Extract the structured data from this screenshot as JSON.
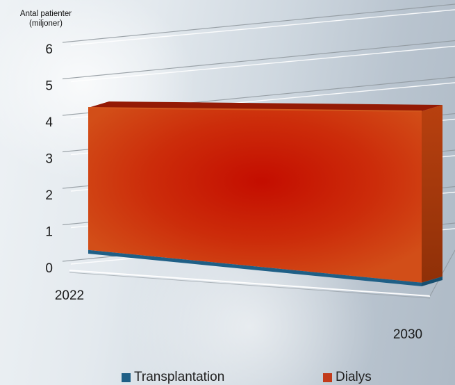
{
  "chart_data": {
    "type": "area",
    "title": "",
    "ylabel_lines": [
      "Antal patienter",
      "(miljoner)"
    ],
    "x": [
      2022,
      2030
    ],
    "x_tick_labels": [
      "2022",
      "2030"
    ],
    "y_tick_labels": [
      "0",
      "1",
      "2",
      "3",
      "4",
      "5",
      "6"
    ],
    "ylim": [
      0,
      6
    ],
    "stacked": true,
    "three_d": true,
    "grid": true,
    "legend_position": "bottom",
    "series": [
      {
        "name": "Transplantation",
        "values": [
          0.1,
          0.1
        ],
        "color": "#1f5f86"
      },
      {
        "name": "Dialys",
        "values": [
          3.9,
          4.7
        ],
        "color": "#c23a1a"
      }
    ]
  }
}
